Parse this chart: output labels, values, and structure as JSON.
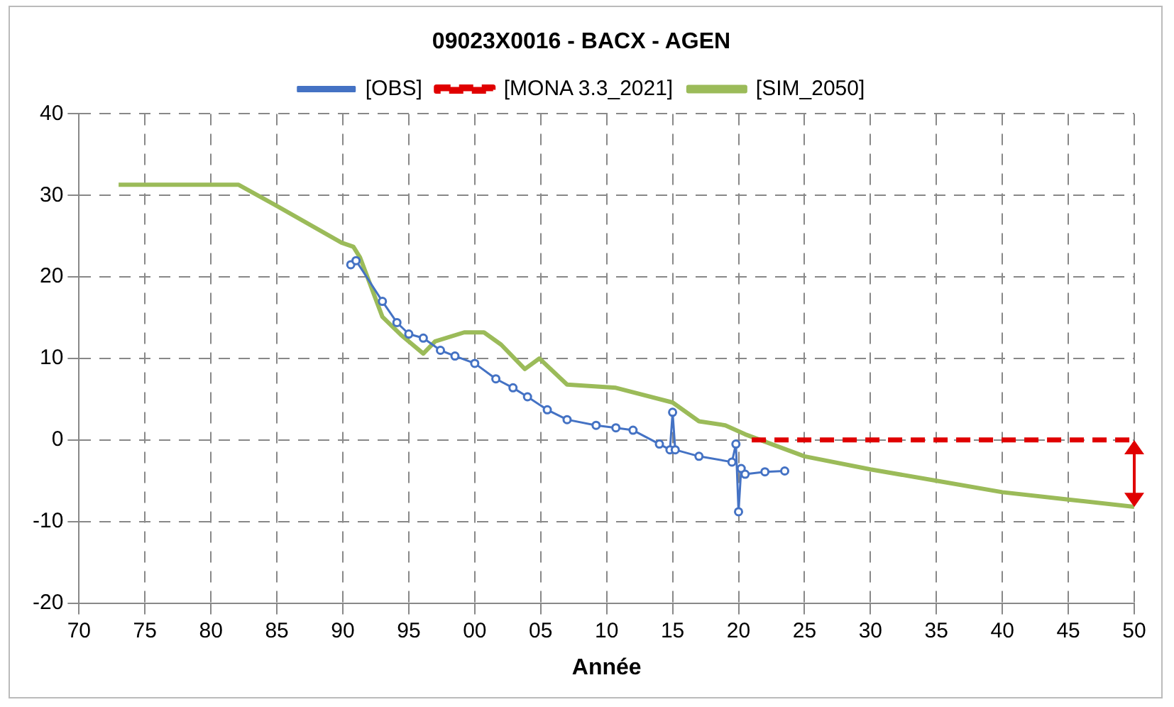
{
  "chart_data": {
    "type": "line",
    "title": "09023X0016 - BACX - AGEN",
    "xlabel": "Année",
    "xlim": [
      1970,
      2050
    ],
    "xticks": [
      {
        "value": 1970,
        "label": "70"
      },
      {
        "value": 1975,
        "label": "75"
      },
      {
        "value": 1980,
        "label": "80"
      },
      {
        "value": 1985,
        "label": "85"
      },
      {
        "value": 1990,
        "label": "90"
      },
      {
        "value": 1995,
        "label": "95"
      },
      {
        "value": 2000,
        "label": "00"
      },
      {
        "value": 2005,
        "label": "05"
      },
      {
        "value": 2010,
        "label": "10"
      },
      {
        "value": 2015,
        "label": "15"
      },
      {
        "value": 2020,
        "label": "20"
      },
      {
        "value": 2025,
        "label": "25"
      },
      {
        "value": 2030,
        "label": "30"
      },
      {
        "value": 2035,
        "label": "35"
      },
      {
        "value": 2040,
        "label": "40"
      },
      {
        "value": 2045,
        "label": "45"
      },
      {
        "value": 2050,
        "label": "50"
      }
    ],
    "ylim": [
      -20,
      40
    ],
    "yticks": [
      -20,
      -10,
      0,
      10,
      20,
      30,
      40
    ],
    "grid": true,
    "legend": "top",
    "series": [
      {
        "name": "[OBS]",
        "color": "#4472c4",
        "marker": "circle",
        "line_style": "solid",
        "x": [
          1990.6,
          1991,
          1993,
          1994.1,
          1995,
          1996.1,
          1997.4,
          1998.5,
          2000,
          2001.6,
          2002.9,
          2004,
          2005.5,
          2007,
          2009.2,
          2010.7,
          2012,
          2014,
          2014.8,
          2015,
          2015.2,
          2017,
          2019.5,
          2019.8,
          2020,
          2020.2,
          2020.5,
          2022,
          2023.5
        ],
        "values": [
          21.5,
          22,
          17,
          14.4,
          13,
          12.5,
          11,
          10.3,
          9.4,
          7.5,
          6.4,
          5.3,
          3.7,
          2.5,
          1.8,
          1.5,
          1.2,
          -0.5,
          -1.2,
          3.4,
          -1.2,
          -2,
          -2.7,
          -0.5,
          -8.8,
          -3.5,
          -4.2,
          -3.9,
          -3.8
        ]
      },
      {
        "name": "[MONA 3.3_2021]",
        "color": "#e00000",
        "marker": "none",
        "line_style": "dashed",
        "x": [
          2021,
          2050
        ],
        "values": [
          0,
          0
        ]
      },
      {
        "name": "[SIM_2050]",
        "color": "#9bbb59",
        "marker": "none",
        "line_style": "solid",
        "x": [
          1973,
          1982.1,
          1984.9,
          1989.9,
          1990.8,
          1991.3,
          1993,
          1994.4,
          1996.1,
          1997,
          1999.2,
          2000.7,
          2002,
          2003.8,
          2004.9,
          2007,
          2010.7,
          2015,
          2017,
          2019,
          2020.5,
          2025,
          2030,
          2035,
          2040,
          2045,
          2050
        ],
        "values": [
          31.3,
          31.3,
          28.8,
          24.2,
          23.7,
          22.4,
          15.1,
          12.9,
          10.6,
          12.1,
          13.2,
          13.2,
          11.7,
          8.7,
          10,
          6.8,
          6.4,
          4.6,
          2.3,
          1.8,
          0.7,
          -2,
          -3.6,
          -5,
          -6.4,
          -7.3,
          -8.2
        ]
      }
    ]
  }
}
